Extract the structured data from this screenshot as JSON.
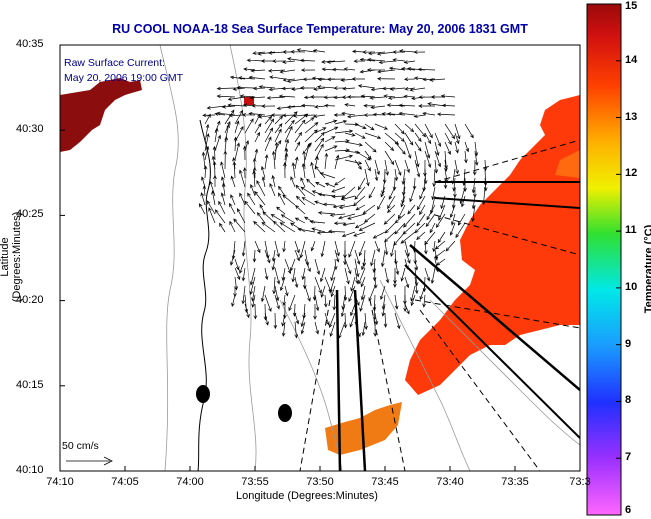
{
  "title": "RU COOL  NOAA-18  Sea Surface Temperature:  May 20, 2006 1831 GMT",
  "annotation_line1": "Raw Surface Current:",
  "annotation_line2": "May 20, 2006 19:00 GMT",
  "scale_label": "50 cm/s",
  "xlabel": "Longitude (Degrees:Minutes)",
  "ylabel": "Latitude (Degrees:Minutes)",
  "colorbar_label": "Temperature (°C)",
  "x_ticks": [
    "74:10",
    "74:05",
    "74:00",
    "73:55",
    "73:50",
    "73:45",
    "73:40",
    "73:35",
    "73:3"
  ],
  "y_ticks": [
    "40:35",
    "40:30",
    "40:25",
    "40:20",
    "40:15",
    "40:10"
  ],
  "colorbar_ticks": [
    "15",
    "14",
    "13",
    "12",
    "11",
    "10",
    "9",
    "8",
    "7",
    "6"
  ],
  "colors": {
    "warm_patch": "#ff3a0a",
    "hot_patch": "#8b0d0d",
    "orange_patch": "#f07a14",
    "title_blue": "#0000aa"
  }
}
